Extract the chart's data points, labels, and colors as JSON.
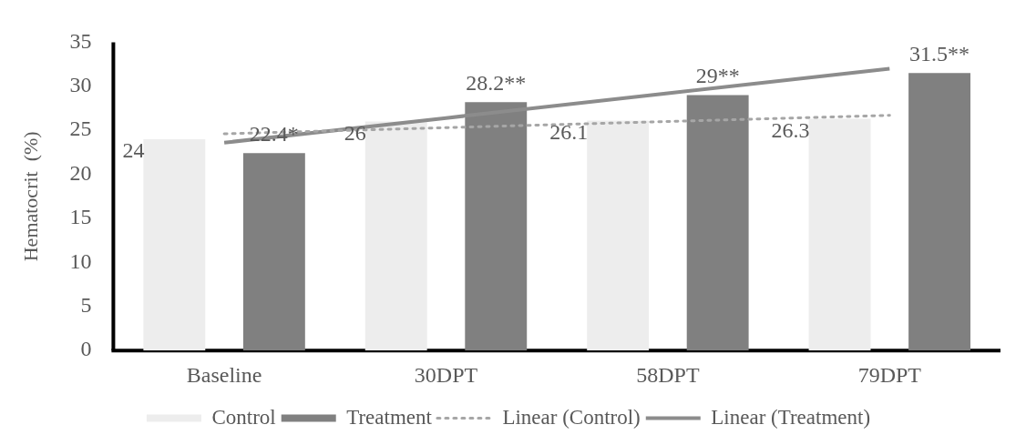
{
  "chart_data": {
    "type": "bar",
    "ylabel": "Hematocrit  (%)",
    "categories": [
      "Baseline",
      "30DPT",
      "58DPT",
      "79DPT"
    ],
    "series": [
      {
        "name": "Control",
        "type": "bar",
        "color": "#ededed",
        "values": [
          24,
          26,
          26.1,
          26.3
        ],
        "value_labels": [
          "24",
          "26",
          "26.1",
          "26.3"
        ]
      },
      {
        "name": "Treatment",
        "type": "bar",
        "color": "#808080",
        "values": [
          22.4,
          28.2,
          29,
          31.5
        ],
        "value_labels": [
          "22.4*",
          "28.2**",
          "29**",
          "31.5**"
        ]
      },
      {
        "name": "Linear (Control)",
        "type": "line",
        "line_style": "dotted",
        "color": "#a6a6a6",
        "x": [
          "Baseline",
          "30DPT",
          "58DPT",
          "79DPT"
        ],
        "values": [
          24.6,
          25.3,
          26.0,
          26.7
        ]
      },
      {
        "name": "Linear (Treatment)",
        "type": "line",
        "line_style": "solid",
        "color": "#8c8c8c",
        "x": [
          "Baseline",
          "30DPT",
          "58DPT",
          "79DPT"
        ],
        "values": [
          23.6,
          26.4,
          29.2,
          32.0
        ]
      }
    ],
    "ylim": [
      0,
      35
    ],
    "yticks": [
      0,
      5,
      10,
      15,
      20,
      25,
      30,
      35
    ],
    "grid": false,
    "legend": "bottom",
    "marker": "none"
  }
}
